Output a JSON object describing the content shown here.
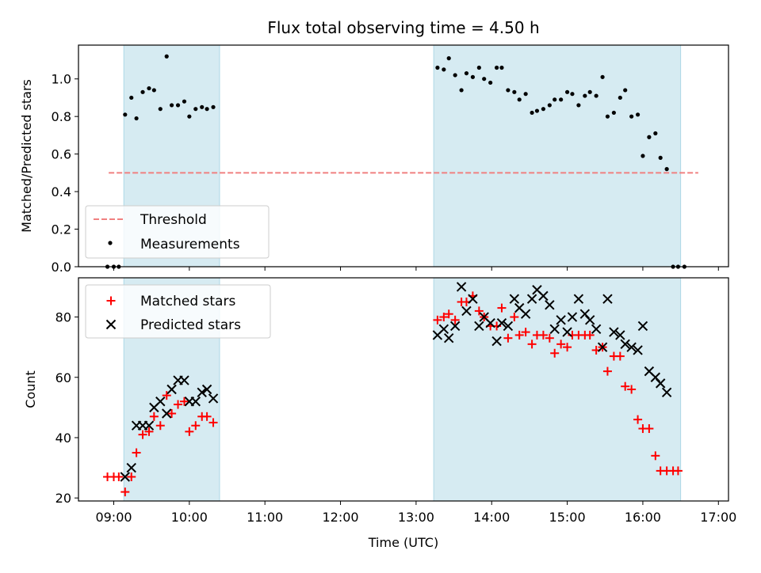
{
  "figure": {
    "title": "Flux total observing time = 4.50 h",
    "xlabel": "Time (UTC)",
    "xticks": [
      "09:00",
      "10:00",
      "11:00",
      "12:00",
      "13:00",
      "14:00",
      "15:00",
      "16:00",
      "17:00"
    ]
  },
  "colors": {
    "span": "#add8e6",
    "threshold": "#f08080",
    "measurement": "#000000",
    "matched": "#ff0000",
    "predicted": "#000000"
  },
  "chart_data": [
    {
      "type": "scatter",
      "ylabel": "Matched/Predicted stars",
      "xlim": [
        "08:32",
        "17:08"
      ],
      "ylim": [
        0,
        1.18
      ],
      "yticks": [
        "0.0",
        "0.2",
        "0.4",
        "0.6",
        "0.8",
        "1.0"
      ],
      "shaded_intervals": [
        [
          "09:08",
          "10:24"
        ],
        [
          "13:14",
          "16:30"
        ]
      ],
      "threshold": {
        "value": 0.5,
        "x": [
          "08:56",
          "16:44"
        ]
      },
      "legend": [
        "Threshold",
        "Measurements"
      ],
      "legend_position": "lower left",
      "points": [
        [
          "08:55",
          0.0
        ],
        [
          "09:00",
          0.0
        ],
        [
          "09:04",
          0.0
        ],
        [
          "09:09",
          0.81
        ],
        [
          "09:14",
          0.9
        ],
        [
          "09:18",
          0.79
        ],
        [
          "09:23",
          0.93
        ],
        [
          "09:28",
          0.95
        ],
        [
          "09:32",
          0.94
        ],
        [
          "09:37",
          0.84
        ],
        [
          "09:42",
          1.12
        ],
        [
          "09:46",
          0.86
        ],
        [
          "09:51",
          0.86
        ],
        [
          "09:56",
          0.88
        ],
        [
          "10:00",
          0.8
        ],
        [
          "10:05",
          0.84
        ],
        [
          "10:10",
          0.85
        ],
        [
          "10:14",
          0.84
        ],
        [
          "10:19",
          0.85
        ],
        [
          "13:17",
          1.06
        ],
        [
          "13:22",
          1.05
        ],
        [
          "13:26",
          1.11
        ],
        [
          "13:31",
          1.02
        ],
        [
          "13:36",
          0.94
        ],
        [
          "13:40",
          1.03
        ],
        [
          "13:45",
          1.01
        ],
        [
          "13:50",
          1.06
        ],
        [
          "13:54",
          1.0
        ],
        [
          "13:59",
          0.98
        ],
        [
          "14:04",
          1.06
        ],
        [
          "14:08",
          1.06
        ],
        [
          "14:13",
          0.94
        ],
        [
          "14:18",
          0.93
        ],
        [
          "14:22",
          0.89
        ],
        [
          "14:27",
          0.92
        ],
        [
          "14:32",
          0.82
        ],
        [
          "14:36",
          0.83
        ],
        [
          "14:41",
          0.84
        ],
        [
          "14:46",
          0.86
        ],
        [
          "14:50",
          0.89
        ],
        [
          "14:55",
          0.89
        ],
        [
          "15:00",
          0.93
        ],
        [
          "15:04",
          0.92
        ],
        [
          "15:09",
          0.86
        ],
        [
          "15:14",
          0.91
        ],
        [
          "15:18",
          0.93
        ],
        [
          "15:23",
          0.91
        ],
        [
          "15:28",
          1.01
        ],
        [
          "15:32",
          0.8
        ],
        [
          "15:37",
          0.82
        ],
        [
          "15:42",
          0.9
        ],
        [
          "15:46",
          0.94
        ],
        [
          "15:51",
          0.8
        ],
        [
          "15:56",
          0.81
        ],
        [
          "16:00",
          0.59
        ],
        [
          "16:05",
          0.69
        ],
        [
          "16:10",
          0.71
        ],
        [
          "16:14",
          0.58
        ],
        [
          "16:19",
          0.52
        ],
        [
          "16:24",
          0.0
        ],
        [
          "16:28",
          0.0
        ],
        [
          "16:33",
          0.0
        ]
      ]
    },
    {
      "type": "scatter",
      "ylabel": "Count",
      "xlim": [
        "08:32",
        "17:08"
      ],
      "ylim": [
        19,
        93
      ],
      "yticks": [
        "20",
        "40",
        "60",
        "80"
      ],
      "shaded_intervals": [
        [
          "09:08",
          "10:24"
        ],
        [
          "13:14",
          "16:30"
        ]
      ],
      "legend": [
        "Matched stars",
        "Predicted stars"
      ],
      "legend_position": "upper left",
      "series": [
        {
          "name": "Matched stars",
          "points": [
            [
              "08:55",
              27
            ],
            [
              "09:00",
              27
            ],
            [
              "09:04",
              27
            ],
            [
              "09:09",
              22
            ],
            [
              "09:14",
              27
            ],
            [
              "09:18",
              35
            ],
            [
              "09:23",
              41
            ],
            [
              "09:28",
              42
            ],
            [
              "09:32",
              47
            ],
            [
              "09:37",
              44
            ],
            [
              "09:42",
              54
            ],
            [
              "09:46",
              48
            ],
            [
              "09:51",
              51
            ],
            [
              "09:56",
              52
            ],
            [
              "10:00",
              42
            ],
            [
              "10:05",
              44
            ],
            [
              "10:10",
              47
            ],
            [
              "10:14",
              47
            ],
            [
              "10:19",
              45
            ],
            [
              "13:17",
              79
            ],
            [
              "13:22",
              80
            ],
            [
              "13:26",
              81
            ],
            [
              "13:31",
              79
            ],
            [
              "13:36",
              85
            ],
            [
              "13:40",
              85
            ],
            [
              "13:45",
              87
            ],
            [
              "13:50",
              82
            ],
            [
              "13:54",
              80
            ],
            [
              "13:59",
              77
            ],
            [
              "14:04",
              77
            ],
            [
              "14:08",
              83
            ],
            [
              "14:13",
              73
            ],
            [
              "14:18",
              80
            ],
            [
              "14:22",
              74
            ],
            [
              "14:27",
              75
            ],
            [
              "14:32",
              71
            ],
            [
              "14:36",
              74
            ],
            [
              "14:41",
              74
            ],
            [
              "14:46",
              73
            ],
            [
              "14:50",
              68
            ],
            [
              "14:55",
              71
            ],
            [
              "15:00",
              70
            ],
            [
              "15:04",
              74
            ],
            [
              "15:09",
              74
            ],
            [
              "15:14",
              74
            ],
            [
              "15:18",
              74
            ],
            [
              "15:23",
              69
            ],
            [
              "15:28",
              70
            ],
            [
              "15:32",
              62
            ],
            [
              "15:37",
              67
            ],
            [
              "15:42",
              67
            ],
            [
              "15:46",
              57
            ],
            [
              "15:51",
              56
            ],
            [
              "15:56",
              46
            ],
            [
              "16:00",
              43
            ],
            [
              "16:05",
              43
            ],
            [
              "16:10",
              34
            ],
            [
              "16:14",
              29
            ],
            [
              "16:19",
              29
            ],
            [
              "16:24",
              29
            ],
            [
              "16:28",
              29
            ]
          ]
        },
        {
          "name": "Predicted stars",
          "points": [
            [
              "09:09",
              27
            ],
            [
              "09:14",
              30
            ],
            [
              "09:18",
              44
            ],
            [
              "09:23",
              44
            ],
            [
              "09:28",
              44
            ],
            [
              "09:32",
              50
            ],
            [
              "09:37",
              52
            ],
            [
              "09:42",
              48
            ],
            [
              "09:46",
              56
            ],
            [
              "09:51",
              59
            ],
            [
              "09:56",
              59
            ],
            [
              "10:00",
              52
            ],
            [
              "10:05",
              52
            ],
            [
              "10:10",
              55
            ],
            [
              "10:14",
              56
            ],
            [
              "10:19",
              53
            ],
            [
              "13:17",
              74
            ],
            [
              "13:22",
              76
            ],
            [
              "13:26",
              73
            ],
            [
              "13:31",
              77
            ],
            [
              "13:36",
              90
            ],
            [
              "13:40",
              82
            ],
            [
              "13:45",
              86
            ],
            [
              "13:50",
              77
            ],
            [
              "13:54",
              80
            ],
            [
              "13:59",
              78
            ],
            [
              "14:04",
              72
            ],
            [
              "14:08",
              78
            ],
            [
              "14:13",
              77
            ],
            [
              "14:18",
              86
            ],
            [
              "14:22",
              83
            ],
            [
              "14:27",
              81
            ],
            [
              "14:32",
              86
            ],
            [
              "14:36",
              89
            ],
            [
              "14:41",
              87
            ],
            [
              "14:46",
              84
            ],
            [
              "14:50",
              76
            ],
            [
              "14:55",
              79
            ],
            [
              "15:00",
              75
            ],
            [
              "15:04",
              80
            ],
            [
              "15:09",
              86
            ],
            [
              "15:14",
              81
            ],
            [
              "15:18",
              79
            ],
            [
              "15:23",
              76
            ],
            [
              "15:28",
              70
            ],
            [
              "15:32",
              86
            ],
            [
              "15:37",
              75
            ],
            [
              "15:42",
              74
            ],
            [
              "15:46",
              71
            ],
            [
              "15:51",
              70
            ],
            [
              "15:56",
              69
            ],
            [
              "16:00",
              77
            ],
            [
              "16:05",
              62
            ],
            [
              "16:10",
              60
            ],
            [
              "16:14",
              58
            ],
            [
              "16:19",
              55
            ]
          ]
        }
      ]
    }
  ]
}
